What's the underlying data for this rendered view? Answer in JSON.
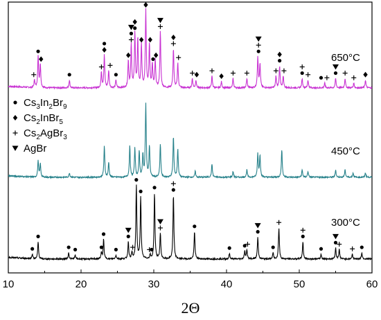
{
  "chart_data": {
    "type": "line",
    "xlabel": "2Θ",
    "xlim": [
      10,
      60
    ],
    "x_ticks": [
      "10",
      "20",
      "30",
      "40",
      "50",
      "60"
    ],
    "yticks_shown": false,
    "legend": {
      "placement": "left",
      "entries": [
        {
          "marker": "circle",
          "label_html": "Cs<tspan dy='4' font-size='10'>3</tspan><tspan dy='-4'>In</tspan><tspan dy='4' font-size='10'>2</tspan><tspan dy='-4'>Br</tspan><tspan dy='4' font-size='10'>9</tspan>",
          "text": "Cs3In2Br9"
        },
        {
          "marker": "diamond",
          "label_html": "Cs<tspan dy='4' font-size='10'>2</tspan><tspan dy='-4'>InBr</tspan><tspan dy='4' font-size='10'>5</tspan>",
          "text": "Cs2InBr5"
        },
        {
          "marker": "cross",
          "label_html": "Cs<tspan dy='4' font-size='10'>2</tspan><tspan dy='-4'>AgBr</tspan><tspan dy='4' font-size='10'>3</tspan>",
          "text": "Cs2AgBr3"
        },
        {
          "marker": "triangle",
          "label_html": "AgBr",
          "text": "AgBr"
        }
      ]
    },
    "series": [
      {
        "name": "650°C",
        "color": "#c832d2",
        "peaks": [
          {
            "x": 13.6,
            "h": 0.1
          },
          {
            "x": 14.1,
            "h": 0.4
          },
          {
            "x": 14.4,
            "h": 0.3
          },
          {
            "x": 18.4,
            "h": 0.1
          },
          {
            "x": 22.8,
            "h": 0.2
          },
          {
            "x": 23.2,
            "h": 0.42
          },
          {
            "x": 23.8,
            "h": 0.22
          },
          {
            "x": 24.8,
            "h": 0.1
          },
          {
            "x": 26.5,
            "h": 0.35
          },
          {
            "x": 26.9,
            "h": 0.55
          },
          {
            "x": 27.4,
            "h": 0.7
          },
          {
            "x": 27.8,
            "h": 0.62
          },
          {
            "x": 28.3,
            "h": 0.55
          },
          {
            "x": 28.9,
            "h": 1.0
          },
          {
            "x": 29.4,
            "h": 0.55
          },
          {
            "x": 29.8,
            "h": 0.3
          },
          {
            "x": 30.2,
            "h": 0.35
          },
          {
            "x": 30.9,
            "h": 0.72
          },
          {
            "x": 32.7,
            "h": 0.5
          },
          {
            "x": 33.3,
            "h": 0.32
          },
          {
            "x": 35.3,
            "h": 0.12
          },
          {
            "x": 35.8,
            "h": 0.1
          },
          {
            "x": 38.0,
            "h": 0.15
          },
          {
            "x": 39.3,
            "h": 0.08
          },
          {
            "x": 40.9,
            "h": 0.12
          },
          {
            "x": 42.8,
            "h": 0.12
          },
          {
            "x": 44.3,
            "h": 0.4
          },
          {
            "x": 44.6,
            "h": 0.3
          },
          {
            "x": 46.8,
            "h": 0.15
          },
          {
            "x": 47.3,
            "h": 0.28
          },
          {
            "x": 47.8,
            "h": 0.15
          },
          {
            "x": 50.4,
            "h": 0.12
          },
          {
            "x": 51.2,
            "h": 0.1
          },
          {
            "x": 53.5,
            "h": 0.06
          },
          {
            "x": 55.0,
            "h": 0.12
          },
          {
            "x": 56.3,
            "h": 0.12
          },
          {
            "x": 57.5,
            "h": 0.06
          },
          {
            "x": 59.1,
            "h": 0.1
          }
        ]
      },
      {
        "name": "450°C",
        "color": "#26818a",
        "peaks": [
          {
            "x": 14.1,
            "h": 0.22
          },
          {
            "x": 14.4,
            "h": 0.18
          },
          {
            "x": 18.4,
            "h": 0.06
          },
          {
            "x": 23.2,
            "h": 0.42
          },
          {
            "x": 23.8,
            "h": 0.2
          },
          {
            "x": 26.7,
            "h": 0.42
          },
          {
            "x": 27.4,
            "h": 0.4
          },
          {
            "x": 28.0,
            "h": 0.35
          },
          {
            "x": 28.5,
            "h": 0.3
          },
          {
            "x": 28.9,
            "h": 1.0
          },
          {
            "x": 29.4,
            "h": 0.42
          },
          {
            "x": 30.9,
            "h": 0.45
          },
          {
            "x": 32.7,
            "h": 0.55
          },
          {
            "x": 33.3,
            "h": 0.38
          },
          {
            "x": 35.7,
            "h": 0.08
          },
          {
            "x": 38.0,
            "h": 0.18
          },
          {
            "x": 40.9,
            "h": 0.08
          },
          {
            "x": 42.8,
            "h": 0.1
          },
          {
            "x": 44.3,
            "h": 0.32
          },
          {
            "x": 44.6,
            "h": 0.3
          },
          {
            "x": 47.6,
            "h": 0.38
          },
          {
            "x": 50.4,
            "h": 0.1
          },
          {
            "x": 51.2,
            "h": 0.08
          },
          {
            "x": 55.0,
            "h": 0.1
          },
          {
            "x": 56.3,
            "h": 0.1
          },
          {
            "x": 57.4,
            "h": 0.06
          },
          {
            "x": 59.1,
            "h": 0.06
          }
        ]
      },
      {
        "name": "300°C",
        "color": "#000000",
        "peaks": [
          {
            "x": 13.3,
            "h": 0.06
          },
          {
            "x": 14.1,
            "h": 0.22
          },
          {
            "x": 18.3,
            "h": 0.08
          },
          {
            "x": 19.2,
            "h": 0.05
          },
          {
            "x": 22.8,
            "h": 0.08
          },
          {
            "x": 23.1,
            "h": 0.25
          },
          {
            "x": 24.8,
            "h": 0.05
          },
          {
            "x": 26.5,
            "h": 0.22
          },
          {
            "x": 27.0,
            "h": 0.08
          },
          {
            "x": 27.6,
            "h": 0.95
          },
          {
            "x": 28.2,
            "h": 0.8
          },
          {
            "x": 29.5,
            "h": 0.05
          },
          {
            "x": 30.1,
            "h": 0.85
          },
          {
            "x": 30.9,
            "h": 0.33
          },
          {
            "x": 32.7,
            "h": 0.82
          },
          {
            "x": 35.6,
            "h": 0.35
          },
          {
            "x": 40.4,
            "h": 0.07
          },
          {
            "x": 42.5,
            "h": 0.1
          },
          {
            "x": 42.8,
            "h": 0.12
          },
          {
            "x": 44.3,
            "h": 0.28
          },
          {
            "x": 46.4,
            "h": 0.08
          },
          {
            "x": 47.2,
            "h": 0.4
          },
          {
            "x": 50.5,
            "h": 0.22
          },
          {
            "x": 53.0,
            "h": 0.06
          },
          {
            "x": 55.0,
            "h": 0.14
          },
          {
            "x": 55.5,
            "h": 0.12
          },
          {
            "x": 57.3,
            "h": 0.06
          },
          {
            "x": 58.6,
            "h": 0.08
          }
        ]
      }
    ],
    "markers": [
      {
        "series": "650°C",
        "items": [
          {
            "x": 13.5,
            "sym": [
              "cross"
            ],
            "h": 0.1
          },
          {
            "x": 14.1,
            "sym": [
              "circle"
            ],
            "h": 0.4
          },
          {
            "x": 14.5,
            "sym": [
              "diamond"
            ],
            "h": 0.3
          },
          {
            "x": 18.4,
            "sym": [
              "circle"
            ],
            "h": 0.1
          },
          {
            "x": 22.8,
            "sym": [
              "cross"
            ],
            "h": 0.2
          },
          {
            "x": 23.2,
            "sym": [
              "circle",
              "diamond"
            ],
            "h": 0.42
          },
          {
            "x": 24.0,
            "sym": [
              "cross"
            ],
            "h": 0.22
          },
          {
            "x": 24.8,
            "sym": [
              "circle"
            ],
            "h": 0.1
          },
          {
            "x": 26.5,
            "sym": [
              "diamond"
            ],
            "h": 0.35
          },
          {
            "x": 26.9,
            "sym": [
              "triangle",
              "circle",
              "cross"
            ],
            "h": 0.55
          },
          {
            "x": 27.4,
            "sym": [
              "diamond",
              "circle"
            ],
            "h": 0.7
          },
          {
            "x": 28.3,
            "sym": [
              "diamond"
            ],
            "h": 0.55
          },
          {
            "x": 28.9,
            "sym": [
              "diamond"
            ],
            "h": 1.0
          },
          {
            "x": 29.5,
            "sym": [
              "diamond"
            ],
            "h": 0.55
          },
          {
            "x": 29.9,
            "sym": [
              "circle"
            ],
            "h": 0.3
          },
          {
            "x": 30.3,
            "sym": [
              "diamond"
            ],
            "h": 0.35
          },
          {
            "x": 30.9,
            "sym": [
              "triangle",
              "cross"
            ],
            "h": 0.72
          },
          {
            "x": 32.7,
            "sym": [
              "diamond",
              "cross"
            ],
            "h": 0.5
          },
          {
            "x": 33.4,
            "sym": [
              "cross"
            ],
            "h": 0.32
          },
          {
            "x": 35.3,
            "sym": [
              "cross"
            ],
            "h": 0.12
          },
          {
            "x": 35.9,
            "sym": [
              "diamond"
            ],
            "h": 0.1
          },
          {
            "x": 38.0,
            "sym": [
              "cross"
            ],
            "h": 0.15
          },
          {
            "x": 39.3,
            "sym": [
              "diamond"
            ],
            "h": 0.08
          },
          {
            "x": 40.9,
            "sym": [
              "cross"
            ],
            "h": 0.12
          },
          {
            "x": 42.8,
            "sym": [
              "cross"
            ],
            "h": 0.12
          },
          {
            "x": 44.4,
            "sym": [
              "triangle",
              "cross",
              "circle"
            ],
            "h": 0.4
          },
          {
            "x": 46.8,
            "sym": [
              "cross"
            ],
            "h": 0.15
          },
          {
            "x": 47.3,
            "sym": [
              "diamond",
              "circle"
            ],
            "h": 0.28
          },
          {
            "x": 47.9,
            "sym": [
              "cross"
            ],
            "h": 0.15
          },
          {
            "x": 50.4,
            "sym": [
              "cross",
              "circle"
            ],
            "h": 0.12
          },
          {
            "x": 51.2,
            "sym": [
              "cross"
            ],
            "h": 0.1
          },
          {
            "x": 53.0,
            "sym": [
              "circle"
            ],
            "h": 0.06
          },
          {
            "x": 53.8,
            "sym": [
              "cross"
            ],
            "h": 0.06
          },
          {
            "x": 55.0,
            "sym": [
              "triangle",
              "circle"
            ],
            "h": 0.12
          },
          {
            "x": 56.3,
            "sym": [
              "cross"
            ],
            "h": 0.12
          },
          {
            "x": 57.5,
            "sym": [
              "cross"
            ],
            "h": 0.06
          },
          {
            "x": 59.1,
            "sym": [
              "diamond"
            ],
            "h": 0.1
          }
        ]
      },
      {
        "series": "300°C",
        "items": [
          {
            "x": 13.3,
            "sym": [
              "circle"
            ],
            "h": 0.06
          },
          {
            "x": 14.1,
            "sym": [
              "circle"
            ],
            "h": 0.22
          },
          {
            "x": 18.3,
            "sym": [
              "circle"
            ],
            "h": 0.08
          },
          {
            "x": 19.2,
            "sym": [
              "circle"
            ],
            "h": 0.05
          },
          {
            "x": 22.8,
            "sym": [
              "circle"
            ],
            "h": 0.08
          },
          {
            "x": 23.1,
            "sym": [
              "circle"
            ],
            "h": 0.25
          },
          {
            "x": 24.8,
            "sym": [
              "circle"
            ],
            "h": 0.05
          },
          {
            "x": 26.5,
            "sym": [
              "triangle",
              "circle"
            ],
            "h": 0.22
          },
          {
            "x": 27.1,
            "sym": [
              "cross"
            ],
            "h": 0.08
          },
          {
            "x": 27.6,
            "sym": [
              "circle"
            ],
            "h": 0.95
          },
          {
            "x": 28.2,
            "sym": [
              "circle"
            ],
            "h": 0.8
          },
          {
            "x": 29.4,
            "sym": [
              "cross"
            ],
            "h": 0.05
          },
          {
            "x": 29.7,
            "sym": [
              "circle"
            ],
            "h": 0.05
          },
          {
            "x": 30.1,
            "sym": [
              "circle"
            ],
            "h": 0.85
          },
          {
            "x": 30.9,
            "sym": [
              "triangle",
              "cross"
            ],
            "h": 0.33
          },
          {
            "x": 32.7,
            "sym": [
              "cross",
              "circle"
            ],
            "h": 0.82
          },
          {
            "x": 35.6,
            "sym": [
              "circle"
            ],
            "h": 0.35
          },
          {
            "x": 40.4,
            "sym": [
              "circle"
            ],
            "h": 0.07
          },
          {
            "x": 42.5,
            "sym": [
              "circle"
            ],
            "h": 0.1
          },
          {
            "x": 42.9,
            "sym": [
              "cross"
            ],
            "h": 0.12
          },
          {
            "x": 44.3,
            "sym": [
              "triangle",
              "circle"
            ],
            "h": 0.28
          },
          {
            "x": 46.4,
            "sym": [
              "circle"
            ],
            "h": 0.08
          },
          {
            "x": 47.2,
            "sym": [
              "cross"
            ],
            "h": 0.4
          },
          {
            "x": 50.5,
            "sym": [
              "cross",
              "circle"
            ],
            "h": 0.22
          },
          {
            "x": 53.0,
            "sym": [
              "circle"
            ],
            "h": 0.06
          },
          {
            "x": 55.0,
            "sym": [
              "triangle",
              "circle"
            ],
            "h": 0.14
          },
          {
            "x": 55.5,
            "sym": [
              "cross"
            ],
            "h": 0.12
          },
          {
            "x": 57.3,
            "sym": [
              "cross"
            ],
            "h": 0.06
          },
          {
            "x": 58.6,
            "sym": [
              "circle"
            ],
            "h": 0.08
          }
        ]
      }
    ]
  }
}
